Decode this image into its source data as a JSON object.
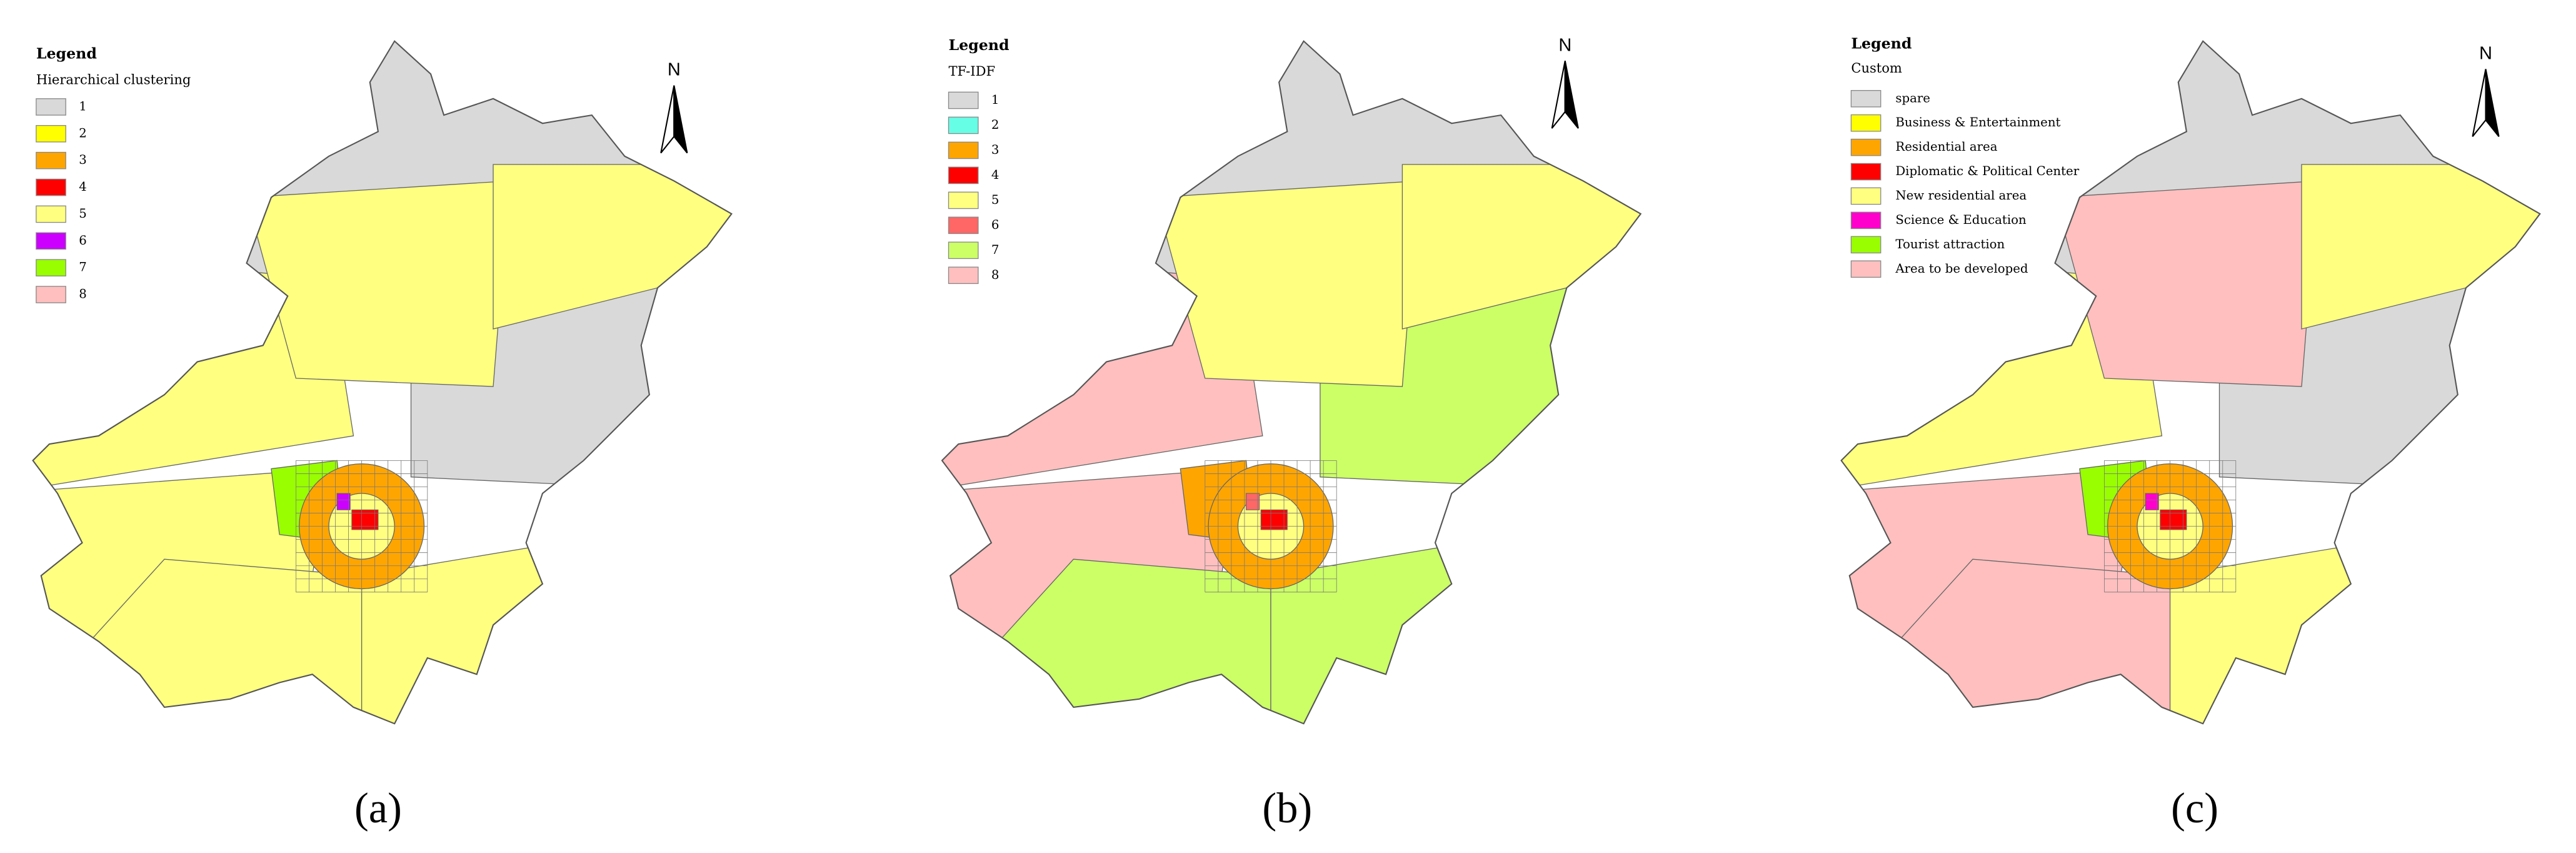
{
  "panels": [
    {
      "legend_title": "Legend",
      "subtitle": "Hierarchical clustering",
      "north": "N",
      "caption": "(a)",
      "items": [
        {
          "label": "1",
          "color": "#d9d9d9"
        },
        {
          "label": "2",
          "color": "#ffff00"
        },
        {
          "label": "3",
          "color": "#ffa500"
        },
        {
          "label": "4",
          "color": "#ff0000"
        },
        {
          "label": "5",
          "color": "#ffff80"
        },
        {
          "label": "6",
          "color": "#cc00ff"
        },
        {
          "label": "7",
          "color": "#99ff00"
        },
        {
          "label": "8",
          "color": "#ffbfbf"
        }
      ]
    },
    {
      "legend_title": "Legend",
      "subtitle": "TF-IDF",
      "north": "N",
      "caption": "(b)",
      "items": [
        {
          "label": "1",
          "color": "#d9d9d9"
        },
        {
          "label": "2",
          "color": "#66ffe6"
        },
        {
          "label": "3",
          "color": "#ffa500"
        },
        {
          "label": "4",
          "color": "#ff0000"
        },
        {
          "label": "5",
          "color": "#ffff80"
        },
        {
          "label": "6",
          "color": "#ff6666"
        },
        {
          "label": "7",
          "color": "#ccff66"
        },
        {
          "label": "8",
          "color": "#ffbfbf"
        }
      ]
    },
    {
      "legend_title": "Legend",
      "subtitle": "Custom",
      "north": "N",
      "caption": "(c)",
      "items": [
        {
          "label": "spare",
          "color": "#d9d9d9"
        },
        {
          "label": "Business & Entertainment",
          "color": "#ffff00"
        },
        {
          "label": "Residential area",
          "color": "#ffa500"
        },
        {
          "label": "Diplomatic & Political Center",
          "color": "#ff0000"
        },
        {
          "label": "New residential area",
          "color": "#ffff80"
        },
        {
          "label": "Science & Education",
          "color": "#ff00cc"
        },
        {
          "label": "Tourist attraction",
          "color": "#99ff00"
        },
        {
          "label": "Area to be developed",
          "color": "#ffbfbf"
        }
      ]
    }
  ]
}
